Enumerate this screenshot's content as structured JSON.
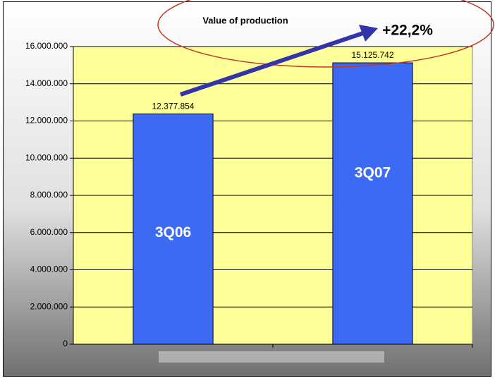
{
  "chart_data": {
    "type": "bar",
    "title": "Value of production",
    "annotation": "+22,2%",
    "categories": [
      "3Q06",
      "3Q07"
    ],
    "values": [
      12377854,
      15125742
    ],
    "value_labels": [
      "12.377.854",
      "15.125.742"
    ],
    "color": "#3d6af2",
    "ylim": [
      0,
      16000000
    ],
    "yticks": [
      0,
      {
        "value": 2000000,
        "label": "2.000.000"
      },
      {
        "value": 4000000,
        "label": "4.000.000"
      },
      {
        "value": 6000000,
        "label": "6.000.000"
      },
      {
        "value": 8000000,
        "label": "8.000.000"
      },
      {
        "value": 10000000,
        "label": "10.000.000"
      },
      {
        "value": 12000000,
        "label": "12.000.000"
      },
      {
        "value": 14000000,
        "label": "14.000.000"
      },
      {
        "value": 16000000,
        "label": "16.000.000"
      }
    ],
    "grid": true
  }
}
